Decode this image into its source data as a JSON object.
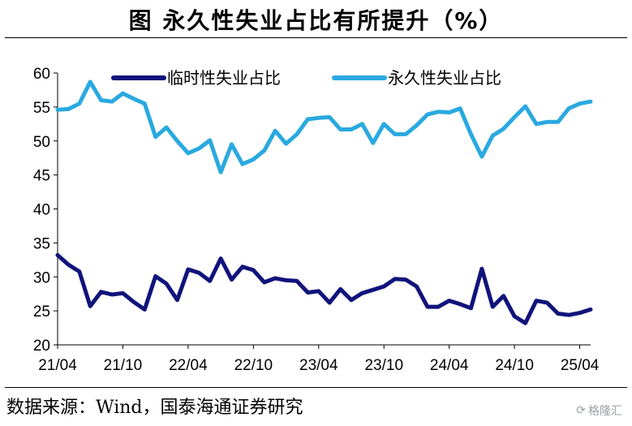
{
  "header": {
    "title": "图   永久性失业占比有所提升（%）"
  },
  "footer": {
    "source": "数据来源：Wind，国泰海通证券研究"
  },
  "watermark": {
    "text": "格隆汇"
  },
  "colors": {
    "temporary": "#10137a",
    "permanent": "#2aa9e0",
    "axis": "#000000"
  },
  "chart_data": {
    "type": "line",
    "title": "永久性失业占比有所提升（%）",
    "xlabel": "",
    "ylabel": "",
    "ylim": [
      20,
      60
    ],
    "yticks": [
      20,
      25,
      30,
      35,
      40,
      45,
      50,
      55,
      60
    ],
    "xlim": [
      "2021-04",
      "2025-05"
    ],
    "xticks": [
      "21/04",
      "21/10",
      "22/04",
      "22/10",
      "23/04",
      "23/10",
      "24/04",
      "24/10",
      "25/04"
    ],
    "grid": false,
    "legend": "top",
    "x": [
      "2021-04",
      "2021-05",
      "2021-06",
      "2021-07",
      "2021-08",
      "2021-09",
      "2021-10",
      "2021-11",
      "2021-12",
      "2022-01",
      "2022-02",
      "2022-03",
      "2022-04",
      "2022-05",
      "2022-06",
      "2022-07",
      "2022-08",
      "2022-09",
      "2022-10",
      "2022-11",
      "2022-12",
      "2023-01",
      "2023-02",
      "2023-03",
      "2023-04",
      "2023-05",
      "2023-06",
      "2023-07",
      "2023-08",
      "2023-09",
      "2023-10",
      "2023-11",
      "2023-12",
      "2024-01",
      "2024-02",
      "2024-03",
      "2024-04",
      "2024-05",
      "2024-06",
      "2024-07",
      "2024-08",
      "2024-09",
      "2024-10",
      "2024-11",
      "2024-12",
      "2025-01",
      "2025-02",
      "2025-03",
      "2025-04",
      "2025-05"
    ],
    "series": [
      {
        "name": "临时性失业占比",
        "values": [
          33.2,
          31.8,
          30.8,
          25.7,
          27.8,
          27.4,
          27.6,
          26.3,
          25.2,
          30.1,
          29.0,
          26.6,
          31.1,
          30.6,
          29.4,
          32.7,
          29.6,
          31.5,
          31.0,
          29.2,
          29.8,
          29.5,
          29.4,
          27.7,
          27.9,
          26.2,
          28.2,
          26.6,
          27.6,
          28.1,
          28.6,
          29.7,
          29.6,
          28.6,
          25.6,
          25.6,
          26.5,
          26.0,
          25.4,
          31.2,
          25.6,
          27.2,
          24.2,
          23.2,
          26.5,
          26.2,
          24.6,
          24.4,
          24.7,
          25.2
        ]
      },
      {
        "name": "永久性失业占比",
        "values": [
          54.6,
          54.7,
          55.5,
          58.7,
          56.0,
          55.8,
          57.0,
          56.2,
          55.5,
          50.6,
          52.0,
          50.0,
          48.2,
          48.9,
          50.1,
          45.4,
          49.5,
          46.6,
          47.3,
          48.6,
          51.5,
          49.6,
          51.0,
          53.2,
          53.4,
          53.5,
          51.7,
          51.7,
          52.5,
          49.7,
          52.5,
          51.0,
          51.0,
          52.3,
          53.9,
          54.3,
          54.2,
          54.8,
          51.0,
          47.7,
          50.8,
          51.8,
          53.5,
          55.1,
          52.5,
          52.8,
          52.8,
          54.8,
          55.5,
          55.8
        ]
      }
    ]
  }
}
